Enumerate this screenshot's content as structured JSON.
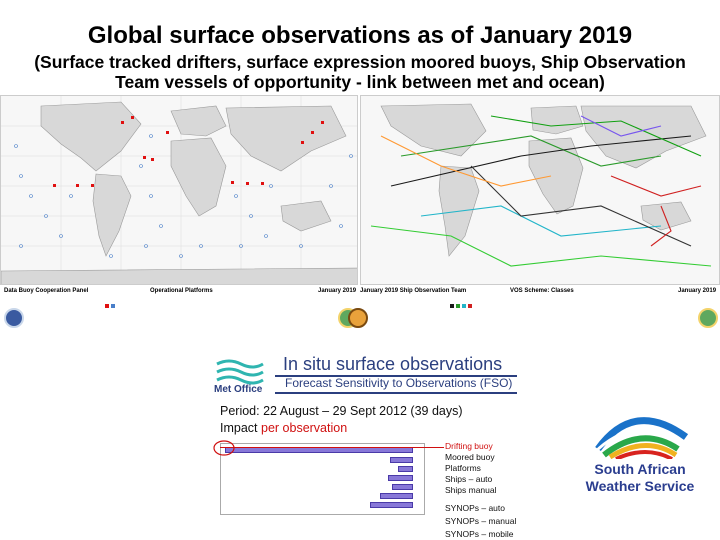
{
  "title": "Global surface observations as of January 2019",
  "subtitle": "(Surface tracked drifters, surface expression moored buoys, Ship Observation Team vessels of opportunity - link between met and ocean)",
  "left_map": {
    "panel": "Data Buoy Cooperation Panel",
    "status": "Operational Platforms",
    "date": "January 2019"
  },
  "right_map": {
    "title_left": "January 2019 Ship Observation Team",
    "title_center": "VOS Scheme: Classes",
    "date": "January 2019"
  },
  "fso": {
    "logo_text": "Met Office",
    "title": "In situ surface observations",
    "subtitle": "Forecast Sensitivity to Observations (FSO)",
    "period": "Period: 22 August – 29 Sept 2012 (39 days)",
    "impact_prefix": "Impact ",
    "impact_highlight": "per observation",
    "platforms": [
      "Drifting buoy",
      "Moored buoy",
      "Platforms",
      "Ships – auto",
      "Ships manual",
      "SYNOPs – auto",
      "SYNOPs – manual",
      "SYNOPs – mobile"
    ]
  },
  "saws": {
    "line1": "South African",
    "line2": "Weather Service"
  }
}
